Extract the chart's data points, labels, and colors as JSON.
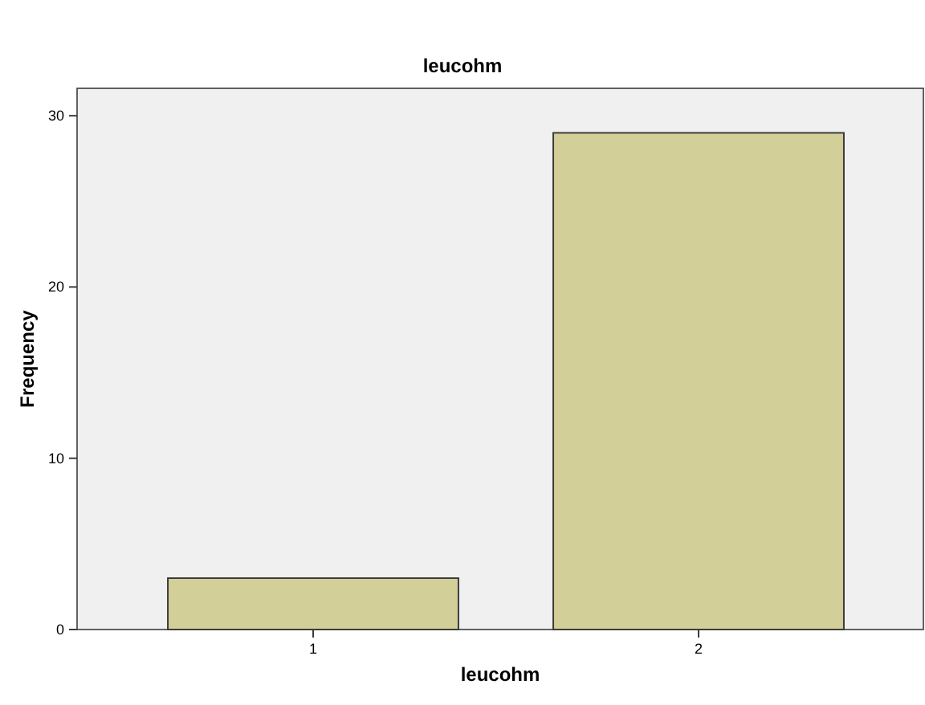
{
  "chart_data": {
    "type": "bar",
    "title": "leucohm",
    "xlabel": "leucohm",
    "ylabel": "Frequency",
    "categories": [
      "1",
      "2"
    ],
    "values": [
      3,
      29
    ],
    "color": "#d3cf98",
    "ylim": [
      0,
      31.6
    ],
    "yticks": [
      0,
      10,
      20,
      30
    ],
    "grid": false
  }
}
